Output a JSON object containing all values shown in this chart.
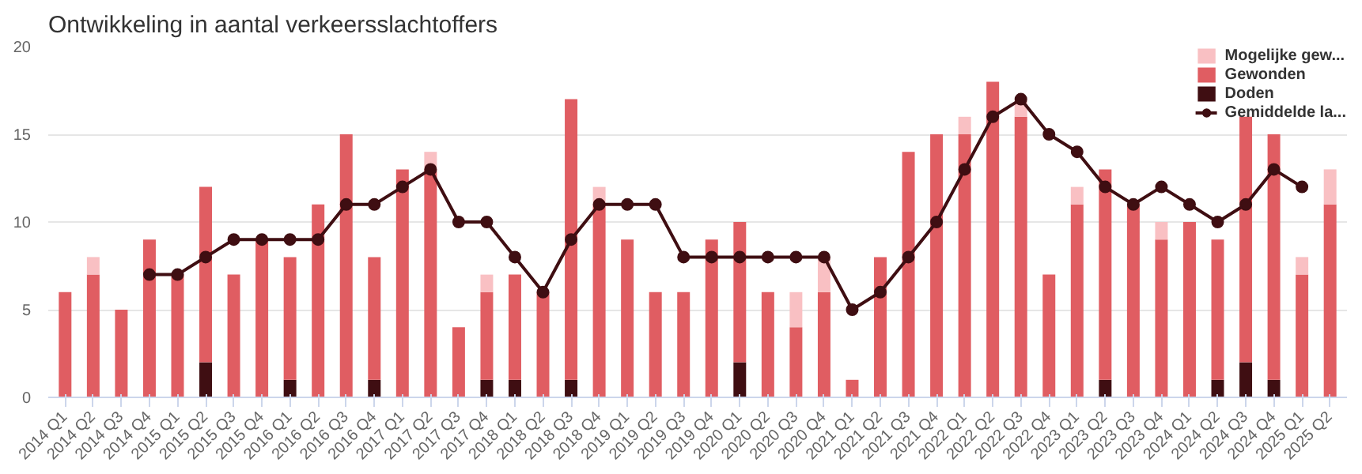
{
  "chart_data": {
    "type": "bar",
    "title": "Ontwikkeling in aantal verkeersslachtoffers",
    "stacked": true,
    "categories": [
      "2014 Q1",
      "2014 Q2",
      "2014 Q3",
      "2014 Q4",
      "2015 Q1",
      "2015 Q2",
      "2015 Q3",
      "2015 Q4",
      "2016 Q1",
      "2016 Q2",
      "2016 Q3",
      "2016 Q4",
      "2017 Q1",
      "2017 Q2",
      "2017 Q3",
      "2017 Q4",
      "2018 Q1",
      "2018 Q2",
      "2018 Q3",
      "2018 Q4",
      "2019 Q1",
      "2019 Q2",
      "2019 Q3",
      "2019 Q4",
      "2020 Q1",
      "2020 Q2",
      "2020 Q3",
      "2020 Q4",
      "2021 Q1",
      "2021 Q2",
      "2021 Q3",
      "2021 Q4",
      "2022 Q1",
      "2022 Q2",
      "2022 Q3",
      "2022 Q4",
      "2023 Q1",
      "2023 Q2",
      "2023 Q3",
      "2023 Q4",
      "2024 Q1",
      "2024 Q2",
      "2024 Q3",
      "2024 Q4",
      "2025 Q1",
      "2025 Q2"
    ],
    "series": [
      {
        "name": "Doden",
        "color": "#3f0e12",
        "values": [
          0,
          0,
          0,
          0,
          0,
          2,
          0,
          0,
          1,
          0,
          0,
          1,
          0,
          0,
          0,
          1,
          1,
          0,
          1,
          0,
          0,
          0,
          0,
          0,
          2,
          0,
          0,
          0,
          0,
          0,
          0,
          0,
          0,
          0,
          0,
          0,
          0,
          1,
          0,
          0,
          0,
          1,
          2,
          1,
          0,
          0
        ]
      },
      {
        "name": "Gewonden",
        "color": "#e05d62",
        "values": [
          6,
          7,
          5,
          9,
          7,
          10,
          7,
          9,
          7,
          11,
          15,
          7,
          13,
          13,
          4,
          5,
          6,
          6,
          16,
          11,
          9,
          6,
          6,
          9,
          8,
          6,
          4,
          6,
          1,
          8,
          14,
          15,
          15,
          18,
          16,
          7,
          11,
          12,
          11,
          9,
          10,
          8,
          14,
          14,
          7,
          11
        ]
      },
      {
        "name": "Mogelijke gew...",
        "color": "#f9c0c3",
        "values": [
          0,
          1,
          0,
          0,
          0,
          0,
          0,
          0,
          0,
          0,
          0,
          0,
          0,
          1,
          0,
          1,
          0,
          0,
          0,
          1,
          0,
          0,
          0,
          0,
          0,
          0,
          2,
          2,
          0,
          0,
          0,
          0,
          1,
          0,
          1,
          0,
          1,
          0,
          0,
          1,
          0,
          0,
          0,
          0,
          1,
          2
        ]
      },
      {
        "name": "Gemiddelde la...",
        "type": "line",
        "color": "#3f0e12",
        "marker": "circle",
        "values": [
          null,
          null,
          null,
          7,
          7,
          8,
          9,
          9,
          9,
          9,
          11,
          11,
          12,
          13,
          10,
          10,
          8,
          6,
          9,
          11,
          11,
          11,
          8,
          8,
          8,
          8,
          8,
          8,
          5,
          6,
          8,
          10,
          13,
          16,
          17,
          15,
          14,
          12,
          11,
          12,
          11,
          10,
          11,
          13,
          12,
          null
        ]
      }
    ],
    "ylim": [
      0,
      20
    ],
    "yticks": [
      0,
      5,
      10,
      15,
      20
    ],
    "grid": "y",
    "legend": "top right"
  }
}
